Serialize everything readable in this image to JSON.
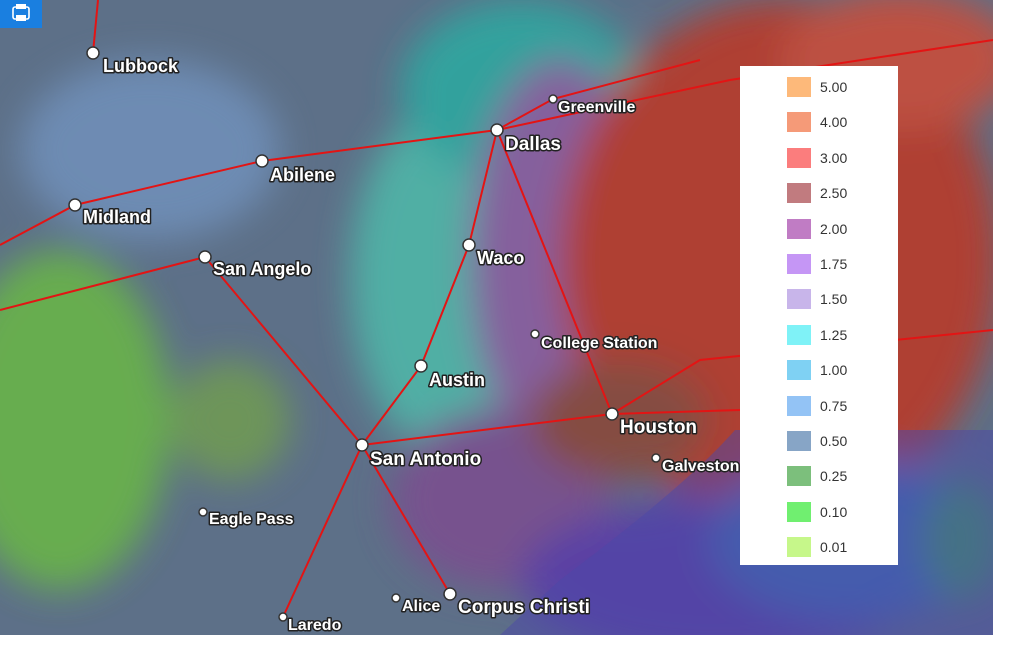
{
  "legend": {
    "items": [
      {
        "label": "5.00",
        "color": "#fdb97a"
      },
      {
        "label": "4.00",
        "color": "#f59a78"
      },
      {
        "label": "3.00",
        "color": "#fb7d7d"
      },
      {
        "label": "2.50",
        "color": "#c17b7f"
      },
      {
        "label": "2.00",
        "color": "#c07cc4"
      },
      {
        "label": "1.75",
        "color": "#c596f5"
      },
      {
        "label": "1.50",
        "color": "#c8b5ea"
      },
      {
        "label": "1.25",
        "color": "#7ff2f7"
      },
      {
        "label": "1.00",
        "color": "#7fd1f3"
      },
      {
        "label": "0.75",
        "color": "#93c3f5"
      },
      {
        "label": "0.50",
        "color": "#87a5c6"
      },
      {
        "label": "0.25",
        "color": "#7cbf7c"
      },
      {
        "label": "0.10",
        "color": "#70ef70"
      },
      {
        "label": "0.01",
        "color": "#c6f78a"
      }
    ]
  },
  "cities": [
    {
      "name": "Lubbock"
    },
    {
      "name": "Dallas"
    },
    {
      "name": "Greenville"
    },
    {
      "name": "Abilene"
    },
    {
      "name": "Midland"
    },
    {
      "name": "San Angelo"
    },
    {
      "name": "Waco"
    },
    {
      "name": "College Station"
    },
    {
      "name": "Austin"
    },
    {
      "name": "Houston"
    },
    {
      "name": "Galveston"
    },
    {
      "name": "San Antonio"
    },
    {
      "name": "Eagle Pass"
    },
    {
      "name": "Alice"
    },
    {
      "name": "Corpus Christi"
    },
    {
      "name": "Laredo"
    }
  ]
}
